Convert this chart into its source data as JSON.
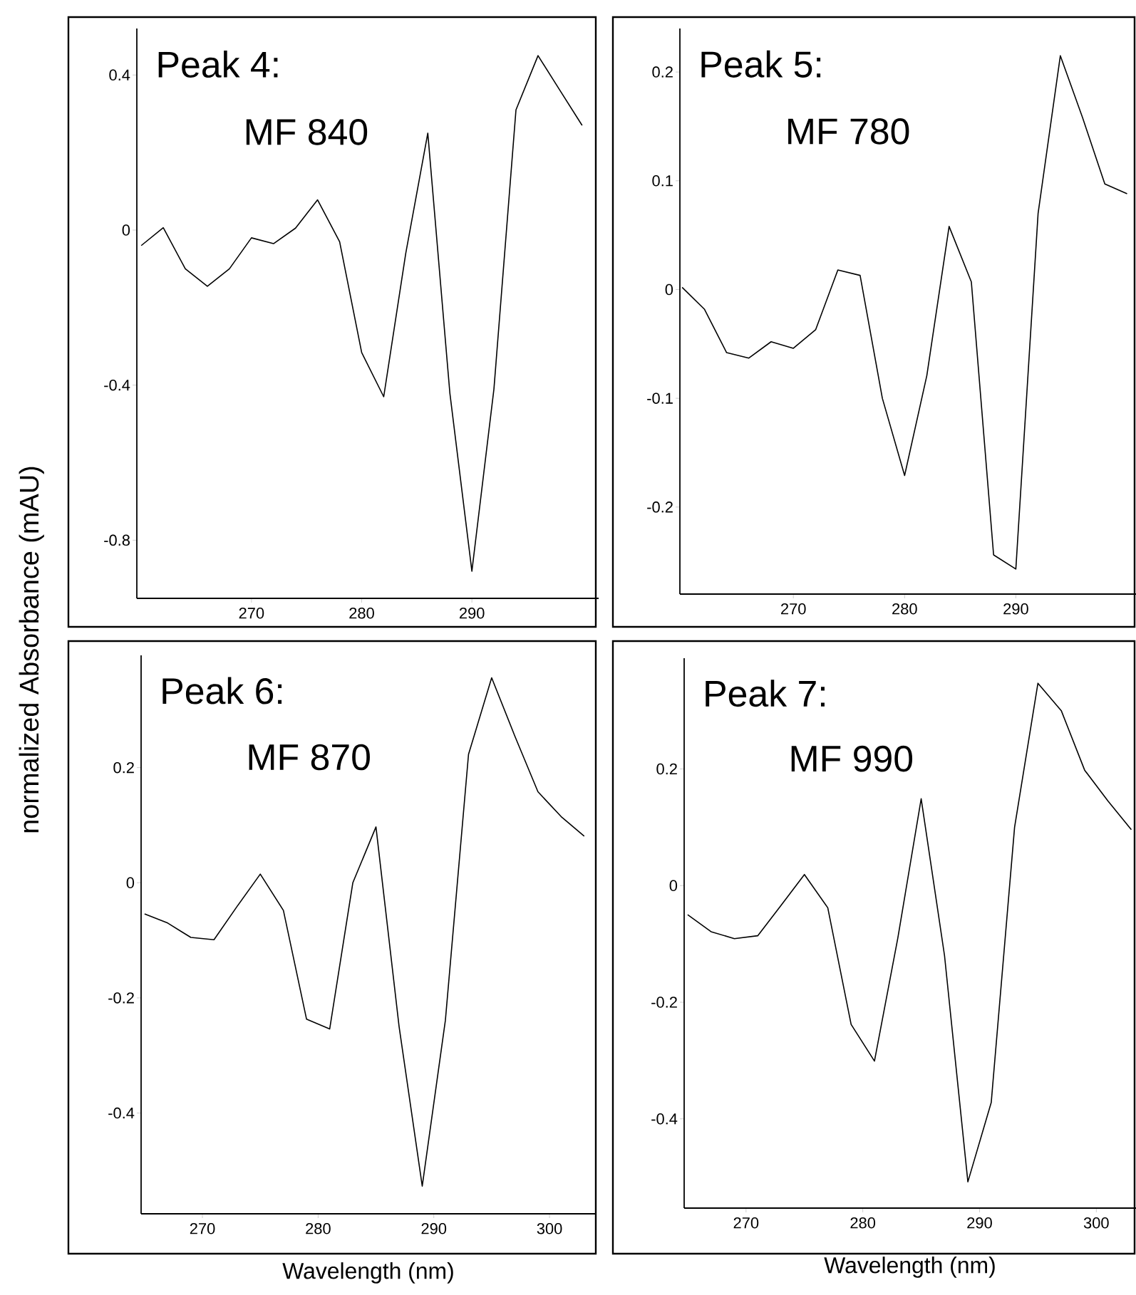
{
  "chart_data": [
    {
      "type": "line",
      "title": "Peak 4:",
      "subtitle": "MF 840",
      "ylabel": "normalized Absorbance (mAU)",
      "x": [
        260,
        262,
        264,
        266,
        268,
        270,
        272,
        274,
        276,
        278,
        280,
        282,
        284,
        286,
        288,
        290,
        292,
        294,
        296,
        298,
        300
      ],
      "series": [
        {
          "color": "#000000",
          "values": [
            -0.04,
            0.006,
            -0.1,
            -0.145,
            -0.1,
            -0.02,
            -0.035,
            0.005,
            0.078,
            -0.03,
            -0.316,
            -0.43,
            -0.06,
            0.25,
            -0.42,
            -0.88,
            -0.41,
            0.31,
            0.45,
            0.36,
            0.27
          ]
        }
      ],
      "xlim": [
        259.6,
        301.5
      ],
      "ylim": [
        -0.95,
        0.52
      ],
      "xticks": [
        270,
        280,
        290
      ],
      "yticks": [
        -0.8,
        -0.4,
        0,
        0.4
      ],
      "marker": "none",
      "line_style": "solid"
    },
    {
      "type": "line",
      "title": "Peak 5:",
      "subtitle": "MF 780",
      "x": [
        260,
        262,
        264,
        266,
        268,
        270,
        272,
        274,
        276,
        278,
        280,
        282,
        284,
        286,
        288,
        290,
        292,
        294,
        296,
        298,
        300
      ],
      "series": [
        {
          "color": "#000000",
          "values": [
            0.002,
            -0.018,
            -0.058,
            -0.063,
            -0.048,
            -0.054,
            -0.037,
            0.018,
            0.013,
            -0.1,
            -0.171,
            -0.079,
            0.058,
            0.007,
            -0.244,
            -0.257,
            0.07,
            0.215,
            0.158,
            0.097,
            0.088
          ]
        }
      ],
      "xlim": [
        259.8,
        300.8
      ],
      "ylim": [
        -0.28,
        0.24
      ],
      "xticks": [
        270,
        280,
        290
      ],
      "yticks": [
        -0.2,
        -0.1,
        0,
        0.1,
        0.2
      ],
      "marker": "none",
      "line_style": "solid"
    },
    {
      "type": "line",
      "title": "Peak 6:",
      "subtitle": "MF 870",
      "xlabel": "Wavelength (nm)",
      "x": [
        265,
        267,
        269,
        271,
        273,
        275,
        277,
        279,
        281,
        283,
        285,
        287,
        289,
        291,
        293,
        295,
        297,
        299,
        301,
        303
      ],
      "series": [
        {
          "color": "#000000",
          "values": [
            -0.054,
            -0.07,
            -0.095,
            -0.099,
            -0.041,
            0.015,
            -0.048,
            -0.237,
            -0.254,
            0.0,
            0.097,
            -0.25,
            -0.527,
            -0.239,
            0.223,
            0.356,
            0.255,
            0.158,
            0.115,
            0.081
          ]
        }
      ],
      "xlim": [
        264.7,
        304
      ],
      "ylim": [
        -0.575,
        0.395
      ],
      "xticks": [
        270,
        280,
        290,
        300
      ],
      "yticks": [
        -0.4,
        -0.2,
        0,
        0.2
      ],
      "marker": "none",
      "line_style": "solid"
    },
    {
      "type": "line",
      "title": "Peak 7:",
      "subtitle": "MF 990",
      "xlabel": "Wavelength (nm)",
      "x": [
        265,
        267,
        269,
        271,
        273,
        275,
        277,
        279,
        281,
        283,
        285,
        287,
        289,
        291,
        293,
        295,
        297,
        299,
        301,
        303
      ],
      "series": [
        {
          "color": "#000000",
          "values": [
            -0.05,
            -0.079,
            -0.091,
            -0.086,
            -0.034,
            0.019,
            -0.038,
            -0.238,
            -0.301,
            -0.09,
            0.149,
            -0.12,
            -0.508,
            -0.372,
            0.1,
            0.347,
            0.3,
            0.198,
            0.145,
            0.096
          ]
        }
      ],
      "xlim": [
        264.7,
        303.4
      ],
      "ylim": [
        -0.553,
        0.39
      ],
      "xticks": [
        270,
        280,
        290,
        300
      ],
      "yticks": [
        -0.4,
        -0.2,
        0,
        0.2
      ],
      "marker": "none",
      "line_style": "solid"
    }
  ]
}
